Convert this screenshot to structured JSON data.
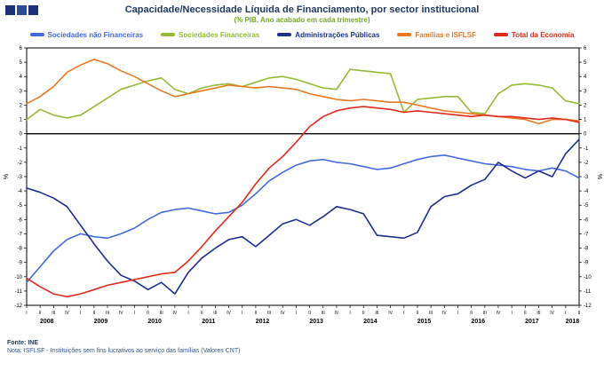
{
  "header": {
    "title": "Capacidade/Necessidade Líquida de Financiamento, por sector institucional",
    "subtitle": "(% PIB, Ano acabado em cada trimestre)"
  },
  "footer": {
    "source": "Fonte: INE",
    "note": "Nota: ISFLSF - Instituições sem fins lucrativos ao serviço das famílias (Valores CNT)"
  },
  "logo": {
    "name": "ine-logo-squares"
  },
  "chart_data": {
    "type": "line",
    "title": "Capacidade/Necessidade Líquida de Financiamento, por sector institucional",
    "subtitle": "(% PIB, Ano acabado em cada trimestre)",
    "ylabel_left": "%",
    "ylabel_right": "%",
    "ylim": [
      -12,
      6
    ],
    "ytick_step": 1,
    "grid": false,
    "legend_position": "top",
    "zero_line": true,
    "x_quarters": [
      "I",
      "II",
      "III",
      "IV",
      "I",
      "II",
      "III",
      "IV",
      "I",
      "II",
      "III",
      "IV",
      "I",
      "II",
      "III",
      "IV",
      "I",
      "II",
      "III",
      "IV",
      "I",
      "II",
      "III",
      "IV",
      "I",
      "II",
      "III",
      "IV",
      "I",
      "II",
      "III",
      "IV",
      "I",
      "II",
      "III",
      "IV",
      "I",
      "II",
      "III",
      "IV",
      "I",
      "II"
    ],
    "x_years": [
      {
        "label": "2008",
        "count": 4
      },
      {
        "label": "2009",
        "count": 4
      },
      {
        "label": "2010",
        "count": 4
      },
      {
        "label": "2011",
        "count": 4
      },
      {
        "label": "2012",
        "count": 4
      },
      {
        "label": "2013",
        "count": 4
      },
      {
        "label": "2014",
        "count": 4
      },
      {
        "label": "2015",
        "count": 4
      },
      {
        "label": "2016",
        "count": 4
      },
      {
        "label": "2017",
        "count": 4
      },
      {
        "label": "2018",
        "count": 2
      }
    ],
    "series": [
      {
        "name": "Sociedades não Financeiras",
        "color": "#4169E1",
        "values": [
          -10.4,
          -9.3,
          -8.2,
          -7.4,
          -7.0,
          -7.2,
          -7.3,
          -7.0,
          -6.6,
          -6.0,
          -5.5,
          -5.3,
          -5.2,
          -5.4,
          -5.6,
          -5.5,
          -5.0,
          -4.2,
          -3.3,
          -2.7,
          -2.2,
          -1.9,
          -1.8,
          -2.0,
          -2.1,
          -2.3,
          -2.5,
          -2.4,
          -2.1,
          -1.8,
          -1.6,
          -1.5,
          -1.7,
          -1.9,
          -2.1,
          -2.2,
          -2.3,
          -2.5,
          -2.6,
          -2.4,
          -2.6,
          -3.1
        ]
      },
      {
        "name": "Sociedades Financeiras",
        "color": "#95B933",
        "values": [
          1.0,
          1.7,
          1.3,
          1.1,
          1.3,
          1.9,
          2.5,
          3.1,
          3.4,
          3.7,
          3.9,
          3.1,
          2.8,
          3.2,
          3.4,
          3.5,
          3.3,
          3.6,
          3.9,
          4.0,
          3.8,
          3.5,
          3.2,
          3.1,
          4.5,
          4.4,
          4.3,
          4.2,
          1.5,
          2.4,
          2.5,
          2.6,
          2.6,
          1.5,
          1.4,
          2.8,
          3.4,
          3.5,
          3.4,
          3.2,
          2.3,
          2.1
        ]
      },
      {
        "name": "Administrações Públicas",
        "color": "#1B2E8F",
        "values": [
          -3.8,
          -4.1,
          -4.5,
          -5.1,
          -6.4,
          -7.7,
          -8.9,
          -9.9,
          -10.3,
          -10.9,
          -10.4,
          -11.2,
          -9.7,
          -8.7,
          -8.0,
          -7.4,
          -7.2,
          -7.9,
          -7.1,
          -6.3,
          -6.0,
          -6.4,
          -5.8,
          -5.1,
          -5.3,
          -5.6,
          -7.1,
          -7.2,
          -7.3,
          -6.9,
          -5.1,
          -4.4,
          -4.2,
          -3.6,
          -3.2,
          -2.0,
          -2.6,
          -3.1,
          -2.6,
          -3.0,
          -1.4,
          -0.4
        ]
      },
      {
        "name": "Famílias e ISFLSF",
        "color": "#E87722",
        "values": [
          2.1,
          2.6,
          3.3,
          4.3,
          4.8,
          5.2,
          4.9,
          4.4,
          4.0,
          3.5,
          3.0,
          2.6,
          2.8,
          3.0,
          3.2,
          3.4,
          3.3,
          3.2,
          3.3,
          3.2,
          3.1,
          2.8,
          2.6,
          2.4,
          2.3,
          2.4,
          2.3,
          2.2,
          2.2,
          2.0,
          1.8,
          1.6,
          1.5,
          1.4,
          1.3,
          1.2,
          1.1,
          1.0,
          0.7,
          1.0,
          1.0,
          0.9
        ]
      },
      {
        "name": "Total da Economia",
        "color": "#E02A1C",
        "values": [
          -10.1,
          -10.7,
          -11.2,
          -11.4,
          -11.2,
          -10.9,
          -10.6,
          -10.4,
          -10.2,
          -10.0,
          -9.8,
          -9.7,
          -8.9,
          -7.9,
          -6.8,
          -5.8,
          -4.8,
          -3.5,
          -2.4,
          -1.6,
          -0.6,
          0.5,
          1.2,
          1.6,
          1.8,
          1.9,
          1.8,
          1.7,
          1.5,
          1.6,
          1.5,
          1.4,
          1.3,
          1.2,
          1.3,
          1.2,
          1.2,
          1.1,
          1.0,
          1.1,
          1.0,
          0.8
        ]
      }
    ]
  }
}
